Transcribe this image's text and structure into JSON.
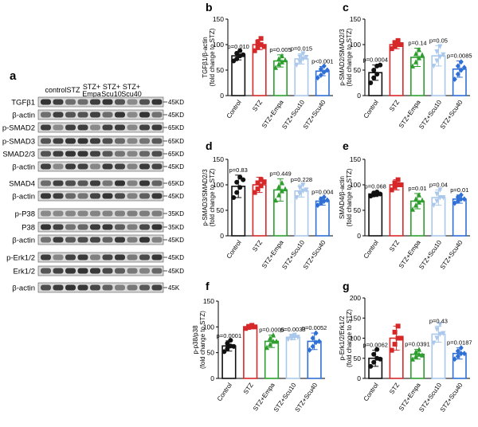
{
  "figure": {
    "blot": {
      "panel_letter": "a",
      "lanes": [
        "control",
        "STZ",
        "STZ+\nEmpa",
        "STZ+\nScu10",
        "STZ+\nScu40"
      ],
      "rows": [
        {
          "label": "TGFβ1",
          "kd": "45KD"
        },
        {
          "label": "β-actin",
          "kd": "45KD"
        },
        {
          "label": "p-SMAD2",
          "kd": "65KD"
        },
        {
          "label": "p-SMAD3",
          "kd": "65KD"
        },
        {
          "label": "SMAD2/3",
          "kd": "65KD"
        },
        {
          "label": "β-actin",
          "kd": "45KD"
        },
        {
          "label": "SMAD4",
          "kd": "65KD"
        },
        {
          "label": "β-actin",
          "kd": "45KD"
        },
        {
          "label": "p-P38",
          "kd": "35KD"
        },
        {
          "label": "P38",
          "kd": "35KD"
        },
        {
          "label": "β-actin",
          "kd": "45KD"
        },
        {
          "label": "p-Erk1/2",
          "kd": "45KD"
        },
        {
          "label": "Erk1/2",
          "kd": "45KD"
        },
        {
          "label": "β-actin",
          "kd": "45K"
        }
      ]
    },
    "colors": {
      "Control": "#111111",
      "STZ": "#d62828",
      "STZ+Empa": "#2e9e2e",
      "STZ+Scu10": "#a9c8ec",
      "STZ+Scu40": "#2f6fd6"
    }
  },
  "chart_data": [
    {
      "panel": "b",
      "type": "bar",
      "ylabel_line1": "TGFβ1/β-actin",
      "ylabel_line2": "(fold change to STZ)",
      "categories": [
        "Control",
        "STZ",
        "STZ+Empa",
        "STZ+Scu10",
        "STZ+Scu40"
      ],
      "values": [
        78,
        100,
        68,
        72,
        48
      ],
      "errors": [
        8,
        10,
        12,
        10,
        9
      ],
      "points": [
        [
          68,
          72,
          78,
          83,
          88,
          80
        ],
        [
          88,
          95,
          100,
          105,
          112,
          96
        ],
        [
          55,
          62,
          66,
          72,
          78,
          70
        ],
        [
          60,
          66,
          72,
          76,
          82,
          75
        ],
        [
          35,
          40,
          46,
          52,
          58,
          50
        ]
      ],
      "pvalues": [
        "p=0.010",
        "",
        "p=0.005",
        "p=0.015",
        "p<0.001"
      ],
      "ylim": [
        0,
        150
      ],
      "yticks": [
        0,
        50,
        100,
        150
      ]
    },
    {
      "panel": "c",
      "type": "bar",
      "ylabel_line1": "p-SMAD2/SMAD2/3",
      "ylabel_line2": "(fold change to STZ)",
      "categories": [
        "Control",
        "STZ",
        "STZ+Empa",
        "STZ+Scu10",
        "STZ+Scu40"
      ],
      "values": [
        45,
        100,
        75,
        78,
        52
      ],
      "errors": [
        15,
        8,
        18,
        20,
        16
      ],
      "points": [
        [
          25,
          35,
          42,
          50,
          58,
          60
        ],
        [
          92,
          96,
          100,
          104,
          108,
          100
        ],
        [
          58,
          66,
          74,
          82,
          90,
          80
        ],
        [
          58,
          68,
          76,
          86,
          96,
          80
        ],
        [
          32,
          42,
          50,
          58,
          66,
          55
        ]
      ],
      "pvalues": [
        "p=0.0004",
        "",
        "p=0.14",
        "p=0.05",
        "p=0.0085"
      ],
      "ylim": [
        0,
        150
      ],
      "yticks": [
        0,
        50,
        100,
        150
      ]
    },
    {
      "panel": "d",
      "type": "bar",
      "ylabel_line1": "p-SMAD3/SMAD2/3",
      "ylabel_line2": "(fold change to STZ)",
      "categories": [
        "Control",
        "STZ",
        "STZ+Empa",
        "STZ+Scu10",
        "STZ+Scu40"
      ],
      "values": [
        97,
        100,
        90,
        88,
        68
      ],
      "errors": [
        22,
        15,
        22,
        12,
        8
      ],
      "points": [
        [
          75,
          85,
          95,
          105,
          115,
          110
        ],
        [
          85,
          92,
          98,
          104,
          110,
          106
        ],
        [
          70,
          80,
          88,
          96,
          104,
          92
        ],
        [
          75,
          82,
          88,
          94,
          100,
          90
        ],
        [
          60,
          64,
          68,
          72,
          76,
          70
        ]
      ],
      "pvalues": [
        "p=0.83",
        "",
        "p=0.449",
        "p=0.228",
        "p=0.004"
      ],
      "ylim": [
        0,
        150
      ],
      "yticks": [
        0,
        50,
        100,
        150
      ]
    },
    {
      "panel": "e",
      "type": "bar",
      "ylabel_line1": "SMAD4/β-actin",
      "ylabel_line2": "(fold change to STZ)",
      "categories": [
        "Control",
        "STZ",
        "STZ+Empa",
        "STZ+Scu10",
        "STZ+Scu40"
      ],
      "values": [
        82,
        100,
        68,
        75,
        72
      ],
      "errors": [
        5,
        10,
        15,
        15,
        8
      ],
      "points": [
        [
          78,
          80,
          82,
          84,
          86,
          82
        ],
        [
          90,
          96,
          100,
          104,
          110,
          100
        ],
        [
          52,
          60,
          66,
          72,
          80,
          70
        ],
        [
          60,
          68,
          75,
          82,
          90,
          75
        ],
        [
          64,
          68,
          72,
          76,
          80,
          72
        ]
      ],
      "pvalues": [
        "p=0.068",
        "",
        "p=0.01",
        "p=0.04",
        "p=0.01"
      ],
      "ylim": [
        0,
        150
      ],
      "yticks": [
        0,
        50,
        100,
        150
      ]
    },
    {
      "panel": "f",
      "type": "bar",
      "ylabel_line1": "p-p38/p38",
      "ylabel_line2": "(fold change to STZ)",
      "categories": [
        "Control",
        "STZ",
        "STZ+Empa",
        "STZ+Scu10",
        "STZ+Scu40"
      ],
      "values": [
        63,
        100,
        72,
        80,
        72
      ],
      "errors": [
        10,
        3,
        12,
        5,
        16
      ],
      "points": [
        [
          52,
          58,
          63,
          68,
          74,
          62
        ],
        [
          97,
          99,
          100,
          101,
          103,
          100
        ],
        [
          60,
          66,
          72,
          78,
          84,
          72
        ],
        [
          76,
          78,
          80,
          82,
          84,
          80
        ],
        [
          55,
          62,
          70,
          78,
          88,
          72
        ]
      ],
      "pvalues": [
        "p=0.0001",
        "",
        "p=0.0005",
        "p=0.0033",
        "p=0.0052"
      ],
      "ylim": [
        0,
        150
      ],
      "yticks": [
        0,
        50,
        100,
        150
      ]
    },
    {
      "panel": "g",
      "type": "bar",
      "ylabel_line1": "p-Erk1/2/Erk1/2",
      "ylabel_line2": "(fold change to STZ)",
      "categories": [
        "Control",
        "STZ",
        "STZ+Empa",
        "STZ+Scu10",
        "STZ+Scu40"
      ],
      "values": [
        50,
        100,
        60,
        110,
        62
      ],
      "errors": [
        20,
        30,
        12,
        20,
        14
      ],
      "points": [
        [
          30,
          40,
          50,
          60,
          72,
          48
        ],
        [
          70,
          85,
          100,
          115,
          130,
          100
        ],
        [
          48,
          55,
          60,
          66,
          72,
          58
        ],
        [
          88,
          100,
          110,
          122,
          134,
          112
        ],
        [
          48,
          55,
          62,
          68,
          76,
          62
        ]
      ],
      "pvalues": [
        "p=0.0062",
        "",
        "p=0.0391",
        "p=0.43",
        "p=0.0187"
      ],
      "ylim": [
        0,
        200
      ],
      "yticks": [
        0,
        50,
        100,
        150,
        200
      ]
    }
  ]
}
